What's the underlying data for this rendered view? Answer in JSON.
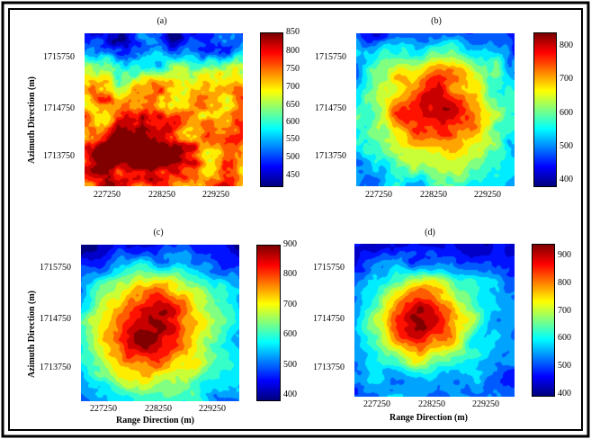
{
  "chart_data": [
    {
      "type": "heatmap",
      "title": "(a)",
      "xlabel": "",
      "ylabel": "Azimuth Direction (m)",
      "xticks": [
        "227250",
        "228250",
        "229250"
      ],
      "yticks": [
        "1715750",
        "1714750",
        "1713750"
      ],
      "colorbar_ticks": [
        "850",
        "800",
        "750",
        "700",
        "650",
        "600",
        "550",
        "500",
        "450"
      ],
      "colorbar_range": [
        420,
        850
      ],
      "hotspot": {
        "x": 227650,
        "y": 1713850,
        "peak": 830
      }
    },
    {
      "type": "heatmap",
      "title": "(b)",
      "xlabel": "",
      "ylabel": "",
      "xticks": [
        "227250",
        "228250",
        "229250"
      ],
      "yticks": [
        "1715750",
        "1714750",
        "1713750"
      ],
      "colorbar_ticks": [
        "800",
        "700",
        "600",
        "500",
        "400"
      ],
      "colorbar_range": [
        390,
        850
      ],
      "hotspot": {
        "x": 228250,
        "y": 1714700,
        "peak": 840
      }
    },
    {
      "type": "heatmap",
      "title": "(c)",
      "xlabel": "Range Direction (m)",
      "ylabel": "Azimuth Direction (m)",
      "xticks": [
        "227250",
        "228250",
        "229250"
      ],
      "yticks": [
        "1715750",
        "1714750",
        "1713750"
      ],
      "colorbar_ticks": [
        "900",
        "800",
        "700",
        "600",
        "500",
        "400"
      ],
      "colorbar_range": [
        380,
        900
      ],
      "hotspot": {
        "x": 228150,
        "y": 1714550,
        "peak": 880
      }
    },
    {
      "type": "heatmap",
      "title": "(d)",
      "xlabel": "Range Direction (m)",
      "ylabel": "",
      "xticks": [
        "227250",
        "228250",
        "229250"
      ],
      "yticks": [
        "1715750",
        "1714750",
        "1713750"
      ],
      "colorbar_ticks": [
        "900",
        "800",
        "700",
        "600",
        "500",
        "400"
      ],
      "colorbar_range": [
        380,
        940
      ],
      "hotspot": {
        "x": 228100,
        "y": 1714700,
        "peak": 920
      }
    }
  ],
  "colors": {
    "frame": "#000000",
    "colormap": "jet"
  }
}
